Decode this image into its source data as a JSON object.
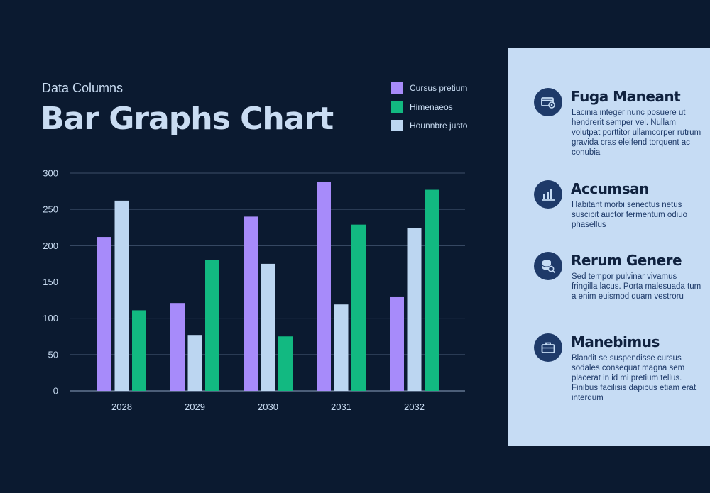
{
  "header": {
    "subtitle": "Data Columns",
    "title": "Bar Graphs Chart"
  },
  "chart_data": {
    "type": "bar",
    "categories": [
      "2028",
      "2029",
      "2030",
      "2031",
      "2032"
    ],
    "series": [
      {
        "name": "Cursus pretium",
        "color": "#a78bfa",
        "values": [
          212,
          121,
          240,
          288,
          130
        ]
      },
      {
        "name": "Hounnbre justo",
        "color": "#bcd6f1",
        "values": [
          262,
          77,
          175,
          119,
          224
        ]
      },
      {
        "name": "Himenaeos",
        "color": "#12b981",
        "values": [
          111,
          180,
          75,
          229,
          277
        ]
      }
    ],
    "yticks": [
      0,
      50,
      100,
      150,
      200,
      250,
      300
    ],
    "ylim": [
      0,
      300
    ],
    "grid": true,
    "legend_placement": "top-right"
  },
  "legend": {
    "items": [
      {
        "label": "Cursus pretium",
        "color": "#a78bfa"
      },
      {
        "label": "Himenaeos",
        "color": "#12b981"
      },
      {
        "label": "Hounnbre justo",
        "color": "#bcd6f1"
      }
    ]
  },
  "panel": {
    "features": [
      {
        "icon": "card-settings-icon",
        "title": "Fuga Maneant",
        "text": "Lacinia integer nunc posuere ut hendrerit semper vel. Nullam volutpat porttitor ullamcorper rutrum gravida cras eleifend torquent ac conubia"
      },
      {
        "icon": "bar-chart-icon",
        "title": "Accumsan",
        "text": "Habitant morbi senectus netus suscipit auctor fermentum odiuo phasellus"
      },
      {
        "icon": "database-search-icon",
        "title": "Rerum Genere",
        "text": "Sed tempor pulvinar vivamus fringilla lacus. Porta malesuada tum a enim euismod quam vestroru"
      },
      {
        "icon": "briefcase-icon",
        "title": "Manebimus",
        "text": "Blandit se suspendisse cursus sodales consequat magna sem placerat in id mi pretium tellus. Finibus facilisis dapibus etiam erat interdum"
      }
    ]
  }
}
